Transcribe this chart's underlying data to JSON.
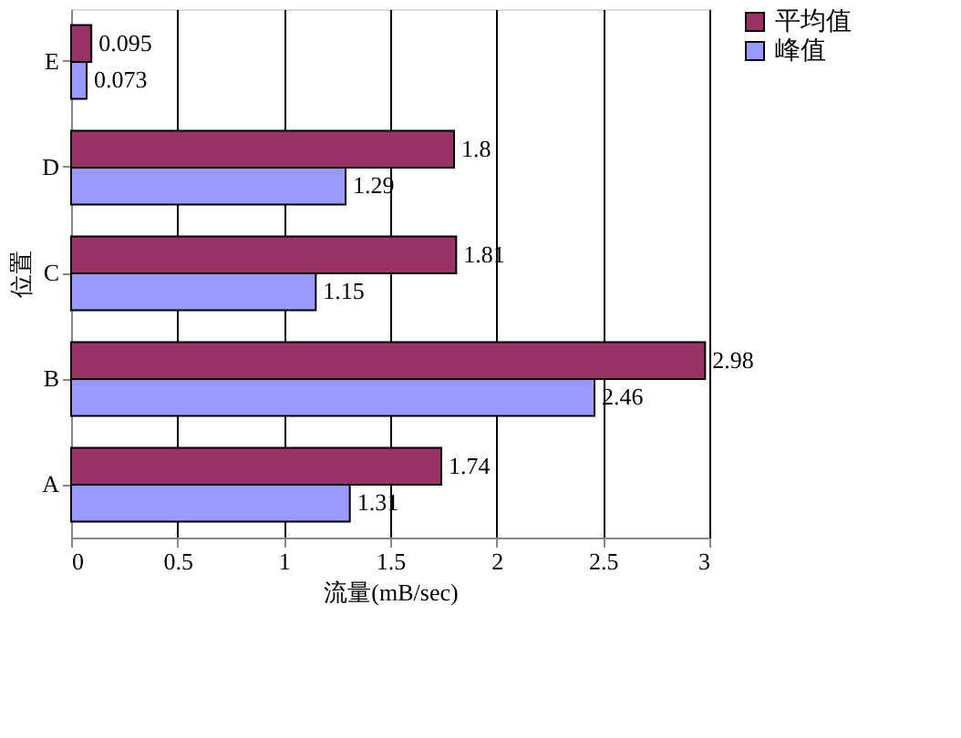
{
  "chart_data": {
    "type": "bar",
    "orientation": "horizontal",
    "xlabel": "流量(mB/sec)",
    "ylabel": "位置",
    "categories": [
      "E",
      "D",
      "C",
      "B",
      "A"
    ],
    "series": [
      {
        "name": "平均值",
        "color": "#993366",
        "values": [
          0.095,
          1.8,
          1.81,
          2.98,
          1.74
        ]
      },
      {
        "name": "峰值",
        "color": "#9999ff",
        "values": [
          0.073,
          1.29,
          1.15,
          2.46,
          1.31
        ]
      }
    ],
    "xlim": [
      0,
      3
    ],
    "xticks": [
      0,
      0.5,
      1,
      1.5,
      2,
      2.5,
      3
    ],
    "grid": "x",
    "legend": "right",
    "data_labels": true
  }
}
